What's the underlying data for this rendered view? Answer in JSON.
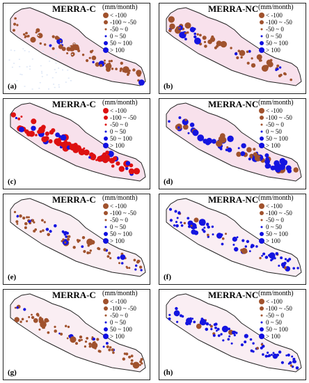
{
  "legend_title": "(mm/month)",
  "legend_items": [
    {
      "label": "< -100",
      "color": "#a0522d",
      "r": 4
    },
    {
      "label": "-100 ~ -50",
      "color": "#a0522d",
      "r": 3
    },
    {
      "label": "-50 ~ 0",
      "color": "#a0522d",
      "r": 1.5
    },
    {
      "label": "0 ~ 50",
      "color": "#1010e0",
      "r": 1.5
    },
    {
      "label": "50 ~ 100",
      "color": "#1010e0",
      "r": 3
    },
    {
      "label": "> 100",
      "color": "#1010e0",
      "r": 4
    }
  ],
  "panels": [
    {
      "id": "a",
      "title": "MERRA-C",
      "label": "(a)",
      "neg_color": "#a0522d",
      "shade": "#f2c8dc",
      "cloud": true
    },
    {
      "id": "b",
      "title": "MERRA-NC",
      "label": "(b)",
      "neg_color": "#a0522d",
      "shade": "#f2c8dc",
      "cloud": false
    },
    {
      "id": "c",
      "title": "MERRA-C",
      "label": "(c)",
      "neg_color": "#dd1111",
      "shade": "#f2c8dc",
      "cloud": false
    },
    {
      "id": "d",
      "title": "MERRA-NC",
      "label": "(d)",
      "neg_color": "#a0522d",
      "shade": "#f2c8dc",
      "cloud": false
    },
    {
      "id": "e",
      "title": "MERRA-C",
      "label": "(e)",
      "neg_color": "#a0522d",
      "shade": "#f6e0ea",
      "cloud": false
    },
    {
      "id": "f",
      "title": "MERRA-NC",
      "label": "(f)",
      "neg_color": "#a0522d",
      "shade": "#f6e0ea",
      "cloud": false
    },
    {
      "id": "g",
      "title": "MERRA-C",
      "label": "(g)",
      "neg_color": "#a0522d",
      "shade": "#f6e0ea",
      "cloud": false
    },
    {
      "id": "h",
      "title": "MERRA-NC",
      "label": "(h)",
      "neg_color": "#a0522d",
      "shade": "#f6e0ea",
      "cloud": false
    }
  ]
}
